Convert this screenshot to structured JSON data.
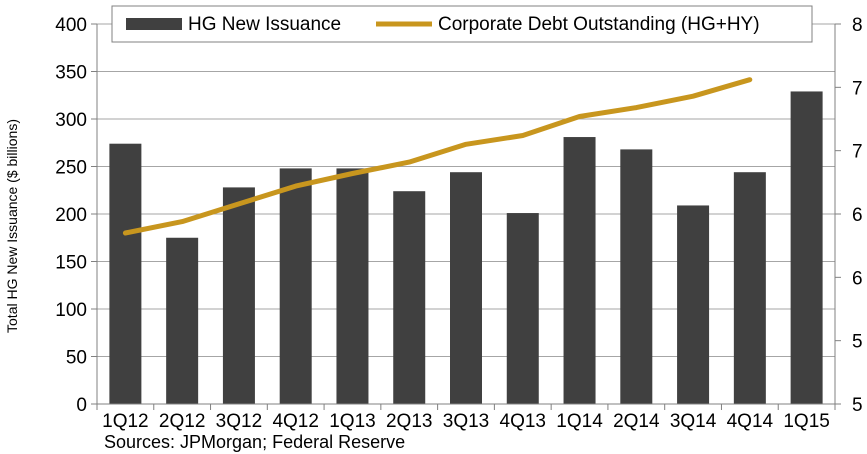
{
  "chart_data": {
    "type": "bar",
    "categories": [
      "1Q12",
      "2Q12",
      "3Q12",
      "4Q12",
      "1Q13",
      "2Q13",
      "3Q13",
      "4Q13",
      "1Q14",
      "2Q14",
      "3Q14",
      "4Q14",
      "1Q15"
    ],
    "series": [
      {
        "name": "HG New Issuance",
        "type": "bar",
        "axis": "left",
        "color": "#404040",
        "values": [
          274,
          175,
          228,
          248,
          248,
          224,
          244,
          201,
          281,
          268,
          209,
          244,
          329
        ]
      },
      {
        "name": "Corporate Debt Outstanding (HG+HY)",
        "type": "line",
        "axis": "right",
        "color": "#C8961E",
        "values": [
          6.35,
          6.44,
          6.58,
          6.72,
          6.82,
          6.91,
          7.05,
          7.12,
          7.27,
          7.34,
          7.43,
          7.56,
          null
        ]
      }
    ],
    "ylabel": "Total HG New Issuance ($ billions)",
    "ylim": [
      0,
      400
    ],
    "y_ticks": [
      "0",
      "50",
      "100",
      "150",
      "200",
      "250",
      "300",
      "350",
      "400"
    ],
    "ylim_right": [
      5,
      8
    ],
    "y2_ticks": [
      "5",
      "5",
      "6",
      "6",
      "7",
      "7",
      "8"
    ],
    "grid": true,
    "legend_position": "top"
  },
  "source_note": "Sources: JPMorgan; Federal Reserve"
}
